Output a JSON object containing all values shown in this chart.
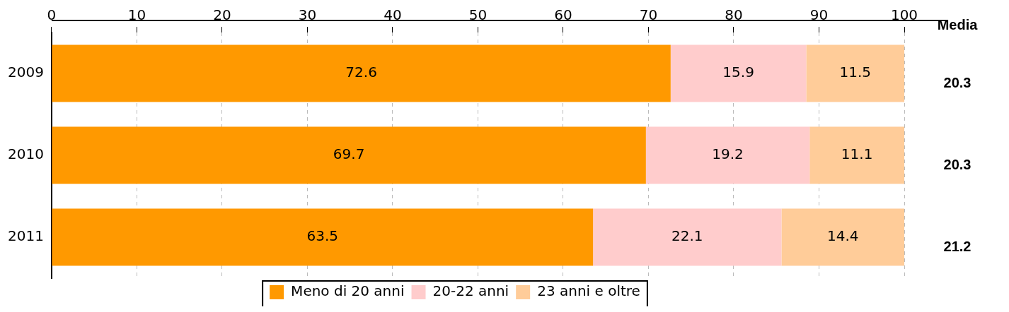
{
  "chart_data": {
    "type": "bar",
    "orientation": "horizontal",
    "stacked": true,
    "categories": [
      "2009",
      "2010",
      "2011"
    ],
    "series": [
      {
        "name": "Meno di 20 anni",
        "color": "#ff9900",
        "values": [
          72.6,
          69.7,
          63.5
        ]
      },
      {
        "name": "20-22 anni",
        "color": "#ffcccc",
        "values": [
          15.9,
          19.2,
          22.1
        ]
      },
      {
        "name": "23 anni e oltre",
        "color": "#ffcc99",
        "values": [
          11.5,
          11.1,
          14.4
        ]
      }
    ],
    "xlim": [
      0,
      100
    ],
    "xticks": [
      0,
      10,
      20,
      30,
      40,
      50,
      60,
      70,
      80,
      90,
      100
    ],
    "grid": "x",
    "legend": "bottom",
    "data_labels": true,
    "annotations": [
      "Media",
      "20.3",
      "20.3",
      "21.2"
    ]
  }
}
